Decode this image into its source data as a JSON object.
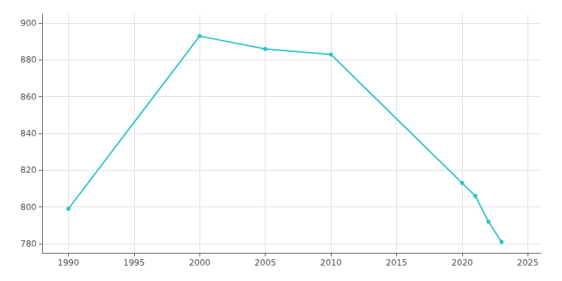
{
  "chart_data": {
    "type": "line",
    "x": [
      1990,
      2000,
      2005,
      2010,
      2020,
      2021,
      2022,
      2023
    ],
    "values": [
      799,
      893,
      886,
      883,
      813,
      806,
      792,
      781
    ],
    "color": "#2ec4c4",
    "marker": "circle",
    "xlim": [
      1988,
      2026
    ],
    "ylim": [
      775,
      905
    ],
    "xticks": [
      1990,
      1995,
      2000,
      2005,
      2010,
      2015,
      2020,
      2025
    ],
    "yticks": [
      780,
      800,
      820,
      840,
      860,
      880,
      900
    ],
    "grid": true
  }
}
